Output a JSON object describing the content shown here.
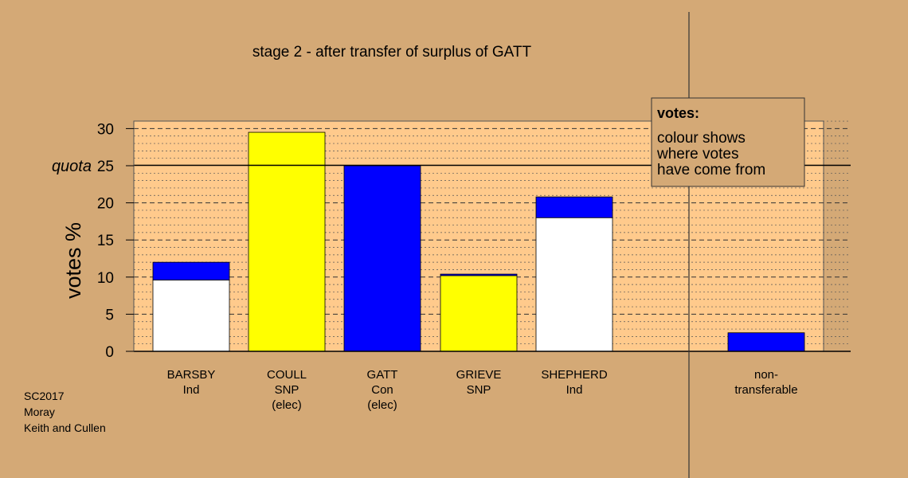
{
  "chart_data": {
    "type": "bar",
    "stacked": true,
    "title": "stage 2 - after transfer of surplus of GATT",
    "ylabel": "votes %",
    "ylim": [
      0,
      31
    ],
    "yticks": [
      0,
      5,
      10,
      15,
      20,
      25,
      30
    ],
    "grid": true,
    "quota": {
      "label": "quota",
      "value": 25
    },
    "categories": [
      {
        "lines": [
          "BARSBY",
          "Ind"
        ]
      },
      {
        "lines": [
          "COULL",
          "SNP",
          "(elec)"
        ]
      },
      {
        "lines": [
          "GATT",
          "Con",
          "(elec)"
        ]
      },
      {
        "lines": [
          "GRIEVE",
          "SNP"
        ]
      },
      {
        "lines": [
          "SHEPHERD",
          "Ind"
        ]
      },
      {
        "lines": [
          "non-",
          "transferable"
        ]
      }
    ],
    "bars": [
      {
        "segments": [
          {
            "value": 9.6,
            "color": "#ffffff"
          },
          {
            "value": 2.4,
            "color": "#0000ff"
          }
        ]
      },
      {
        "segments": [
          {
            "value": 29.5,
            "color": "#ffff00"
          }
        ]
      },
      {
        "segments": [
          {
            "value": 25.0,
            "color": "#0000ff"
          }
        ]
      },
      {
        "segments": [
          {
            "value": 10.2,
            "color": "#ffff00"
          },
          {
            "value": 0.2,
            "color": "#0000ff"
          }
        ]
      },
      {
        "segments": [
          {
            "value": 18.0,
            "color": "#ffffff"
          },
          {
            "value": 2.8,
            "color": "#0000ff"
          }
        ]
      },
      {
        "segments": [
          {
            "value": 2.5,
            "color": "#0000ff"
          }
        ]
      }
    ],
    "legend": {
      "position": "top-right",
      "title": "votes:",
      "lines": [
        "colour shows",
        "where votes",
        "have come from"
      ]
    }
  },
  "footer": [
    "SC2017",
    "Moray",
    "Keith and Cullen"
  ],
  "colors": {
    "background": "#d4a976",
    "plot_background": "#ffca8c",
    "legend_background": "#d4a976"
  }
}
